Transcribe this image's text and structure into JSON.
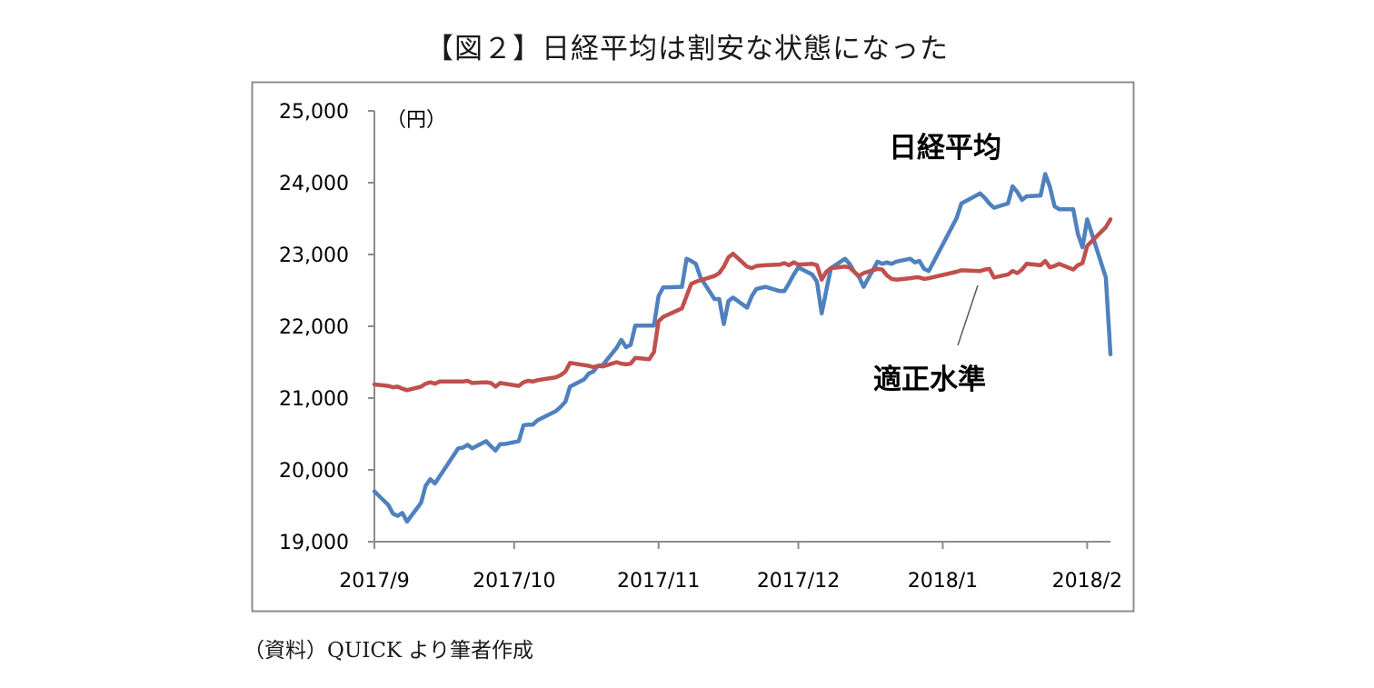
{
  "figure": {
    "title": "【図２】日経平均は割安な状態になった",
    "source": "（資料）QUICK より筆者作成"
  },
  "chart_data": {
    "type": "line",
    "title": "【図２】日経平均は割安な状態になった",
    "ylabel": "（円）",
    "xlabel": "",
    "ylim": [
      19000,
      25000
    ],
    "yticks": [
      19000,
      20000,
      21000,
      22000,
      23000,
      24000,
      25000
    ],
    "ytick_labels": [
      "19,000",
      "20,000",
      "21,000",
      "22,000",
      "23,000",
      "24,000",
      "25,000"
    ],
    "xlim": [
      "2017-09-01",
      "2018-02-06"
    ],
    "xticks": [
      "2017-09-01",
      "2017-10-01",
      "2017-11-01",
      "2017-12-01",
      "2018-01-01",
      "2018-02-01"
    ],
    "xtick_labels": [
      "2017/9",
      "2017/10",
      "2017/11",
      "2017/12",
      "2018/1",
      "2018/2"
    ],
    "grid": false,
    "legend": "none",
    "series": [
      {
        "name": "日経平均",
        "color": "#4f81bd",
        "points": [
          [
            "2017-09-01",
            19700
          ],
          [
            "2017-09-04",
            19510
          ],
          [
            "2017-09-05",
            19390
          ],
          [
            "2017-09-06",
            19360
          ],
          [
            "2017-09-07",
            19400
          ],
          [
            "2017-09-08",
            19280
          ],
          [
            "2017-09-11",
            19540
          ],
          [
            "2017-09-12",
            19780
          ],
          [
            "2017-09-13",
            19870
          ],
          [
            "2017-09-14",
            19810
          ],
          [
            "2017-09-15",
            19910
          ],
          [
            "2017-09-19",
            20300
          ],
          [
            "2017-09-20",
            20310
          ],
          [
            "2017-09-21",
            20350
          ],
          [
            "2017-09-22",
            20300
          ],
          [
            "2017-09-25",
            20400
          ],
          [
            "2017-09-26",
            20330
          ],
          [
            "2017-09-27",
            20270
          ],
          [
            "2017-09-28",
            20360
          ],
          [
            "2017-09-29",
            20360
          ],
          [
            "2017-10-02",
            20400
          ],
          [
            "2017-10-03",
            20620
          ],
          [
            "2017-10-04",
            20630
          ],
          [
            "2017-10-05",
            20630
          ],
          [
            "2017-10-06",
            20690
          ],
          [
            "2017-10-10",
            20820
          ],
          [
            "2017-10-11",
            20880
          ],
          [
            "2017-10-12",
            20950
          ],
          [
            "2017-10-13",
            21160
          ],
          [
            "2017-10-16",
            21260
          ],
          [
            "2017-10-17",
            21340
          ],
          [
            "2017-10-18",
            21370
          ],
          [
            "2017-10-19",
            21450
          ],
          [
            "2017-10-20",
            21460
          ],
          [
            "2017-10-23",
            21700
          ],
          [
            "2017-10-24",
            21810
          ],
          [
            "2017-10-25",
            21710
          ],
          [
            "2017-10-26",
            21740
          ],
          [
            "2017-10-27",
            22010
          ],
          [
            "2017-10-30",
            22010
          ],
          [
            "2017-10-31",
            22010
          ],
          [
            "2017-11-01",
            22420
          ],
          [
            "2017-11-02",
            22540
          ],
          [
            "2017-11-06",
            22550
          ],
          [
            "2017-11-07",
            22940
          ],
          [
            "2017-11-08",
            22910
          ],
          [
            "2017-11-09",
            22870
          ],
          [
            "2017-11-10",
            22680
          ],
          [
            "2017-11-13",
            22380
          ],
          [
            "2017-11-14",
            22380
          ],
          [
            "2017-11-15",
            22030
          ],
          [
            "2017-11-16",
            22350
          ],
          [
            "2017-11-17",
            22400
          ],
          [
            "2017-11-20",
            22260
          ],
          [
            "2017-11-21",
            22420
          ],
          [
            "2017-11-22",
            22520
          ],
          [
            "2017-11-24",
            22550
          ],
          [
            "2017-11-27",
            22490
          ],
          [
            "2017-11-28",
            22490
          ],
          [
            "2017-11-29",
            22600
          ],
          [
            "2017-11-30",
            22720
          ],
          [
            "2017-12-01",
            22820
          ],
          [
            "2017-12-04",
            22720
          ],
          [
            "2017-12-05",
            22620
          ],
          [
            "2017-12-06",
            22180
          ],
          [
            "2017-12-07",
            22500
          ],
          [
            "2017-12-08",
            22810
          ],
          [
            "2017-12-11",
            22940
          ],
          [
            "2017-12-12",
            22870
          ],
          [
            "2017-12-13",
            22760
          ],
          [
            "2017-12-14",
            22690
          ],
          [
            "2017-12-15",
            22550
          ],
          [
            "2017-12-18",
            22900
          ],
          [
            "2017-12-19",
            22870
          ],
          [
            "2017-12-20",
            22890
          ],
          [
            "2017-12-21",
            22870
          ],
          [
            "2017-12-22",
            22900
          ],
          [
            "2017-12-25",
            22940
          ],
          [
            "2017-12-26",
            22890
          ],
          [
            "2017-12-27",
            22910
          ],
          [
            "2017-12-28",
            22800
          ],
          [
            "2017-12-29",
            22770
          ],
          [
            "2018-01-04",
            23510
          ],
          [
            "2018-01-05",
            23710
          ],
          [
            "2018-01-09",
            23850
          ],
          [
            "2018-01-10",
            23790
          ],
          [
            "2018-01-11",
            23710
          ],
          [
            "2018-01-12",
            23650
          ],
          [
            "2018-01-15",
            23710
          ],
          [
            "2018-01-16",
            23950
          ],
          [
            "2018-01-17",
            23870
          ],
          [
            "2018-01-18",
            23760
          ],
          [
            "2018-01-19",
            23810
          ],
          [
            "2018-01-22",
            23820
          ],
          [
            "2018-01-23",
            24120
          ],
          [
            "2018-01-24",
            23940
          ],
          [
            "2018-01-25",
            23670
          ],
          [
            "2018-01-26",
            23630
          ],
          [
            "2018-01-29",
            23630
          ],
          [
            "2018-01-30",
            23290
          ],
          [
            "2018-01-31",
            23100
          ],
          [
            "2018-02-01",
            23490
          ],
          [
            "2018-02-05",
            22680
          ],
          [
            "2018-02-06",
            21610
          ]
        ]
      },
      {
        "name": "適正水準",
        "color": "#c0504d",
        "points": [
          [
            "2017-09-01",
            21190
          ],
          [
            "2017-09-04",
            21170
          ],
          [
            "2017-09-05",
            21150
          ],
          [
            "2017-09-06",
            21160
          ],
          [
            "2017-09-07",
            21130
          ],
          [
            "2017-09-08",
            21110
          ],
          [
            "2017-09-11",
            21160
          ],
          [
            "2017-09-12",
            21200
          ],
          [
            "2017-09-13",
            21220
          ],
          [
            "2017-09-14",
            21200
          ],
          [
            "2017-09-15",
            21230
          ],
          [
            "2017-09-19",
            21230
          ],
          [
            "2017-09-20",
            21230
          ],
          [
            "2017-09-21",
            21240
          ],
          [
            "2017-09-22",
            21210
          ],
          [
            "2017-09-25",
            21220
          ],
          [
            "2017-09-26",
            21210
          ],
          [
            "2017-09-27",
            21160
          ],
          [
            "2017-09-28",
            21210
          ],
          [
            "2017-09-29",
            21200
          ],
          [
            "2017-10-02",
            21170
          ],
          [
            "2017-10-03",
            21220
          ],
          [
            "2017-10-04",
            21240
          ],
          [
            "2017-10-05",
            21230
          ],
          [
            "2017-10-06",
            21250
          ],
          [
            "2017-10-10",
            21290
          ],
          [
            "2017-10-11",
            21320
          ],
          [
            "2017-10-12",
            21370
          ],
          [
            "2017-10-13",
            21490
          ],
          [
            "2017-10-16",
            21460
          ],
          [
            "2017-10-17",
            21450
          ],
          [
            "2017-10-18",
            21430
          ],
          [
            "2017-10-19",
            21450
          ],
          [
            "2017-10-20",
            21440
          ],
          [
            "2017-10-23",
            21500
          ],
          [
            "2017-10-24",
            21480
          ],
          [
            "2017-10-25",
            21470
          ],
          [
            "2017-10-26",
            21480
          ],
          [
            "2017-10-27",
            21560
          ],
          [
            "2017-10-30",
            21540
          ],
          [
            "2017-10-31",
            21640
          ],
          [
            "2017-11-01",
            22070
          ],
          [
            "2017-11-02",
            22130
          ],
          [
            "2017-11-06",
            22250
          ],
          [
            "2017-11-07",
            22420
          ],
          [
            "2017-11-08",
            22590
          ],
          [
            "2017-11-09",
            22620
          ],
          [
            "2017-11-10",
            22640
          ],
          [
            "2017-11-13",
            22700
          ],
          [
            "2017-11-14",
            22740
          ],
          [
            "2017-11-15",
            22830
          ],
          [
            "2017-11-16",
            22960
          ],
          [
            "2017-11-17",
            23010
          ],
          [
            "2017-11-20",
            22830
          ],
          [
            "2017-11-21",
            22810
          ],
          [
            "2017-11-22",
            22840
          ],
          [
            "2017-11-24",
            22850
          ],
          [
            "2017-11-27",
            22860
          ],
          [
            "2017-11-28",
            22880
          ],
          [
            "2017-11-29",
            22850
          ],
          [
            "2017-11-30",
            22890
          ],
          [
            "2017-12-01",
            22860
          ],
          [
            "2017-12-04",
            22870
          ],
          [
            "2017-12-05",
            22850
          ],
          [
            "2017-12-06",
            22650
          ],
          [
            "2017-12-07",
            22760
          ],
          [
            "2017-12-08",
            22810
          ],
          [
            "2017-12-11",
            22830
          ],
          [
            "2017-12-12",
            22820
          ],
          [
            "2017-12-13",
            22760
          ],
          [
            "2017-12-14",
            22700
          ],
          [
            "2017-12-15",
            22740
          ],
          [
            "2017-12-18",
            22800
          ],
          [
            "2017-12-19",
            22790
          ],
          [
            "2017-12-20",
            22710
          ],
          [
            "2017-12-21",
            22660
          ],
          [
            "2017-12-22",
            22650
          ],
          [
            "2017-12-25",
            22670
          ],
          [
            "2017-12-26",
            22680
          ],
          [
            "2017-12-27",
            22680
          ],
          [
            "2017-12-28",
            22660
          ],
          [
            "2017-12-29",
            22670
          ],
          [
            "2018-01-04",
            22760
          ],
          [
            "2018-01-05",
            22780
          ],
          [
            "2018-01-09",
            22770
          ],
          [
            "2018-01-10",
            22790
          ],
          [
            "2018-01-11",
            22800
          ],
          [
            "2018-01-12",
            22680
          ],
          [
            "2018-01-15",
            22720
          ],
          [
            "2018-01-16",
            22770
          ],
          [
            "2018-01-17",
            22740
          ],
          [
            "2018-01-18",
            22790
          ],
          [
            "2018-01-19",
            22870
          ],
          [
            "2018-01-22",
            22850
          ],
          [
            "2018-01-23",
            22910
          ],
          [
            "2018-01-24",
            22820
          ],
          [
            "2018-01-25",
            22840
          ],
          [
            "2018-01-26",
            22870
          ],
          [
            "2018-01-29",
            22790
          ],
          [
            "2018-01-30",
            22850
          ],
          [
            "2018-01-31",
            22880
          ],
          [
            "2018-02-01",
            23120
          ],
          [
            "2018-02-05",
            23380
          ],
          [
            "2018-02-06",
            23490
          ]
        ]
      }
    ],
    "annotations": [
      {
        "text": "日経平均",
        "series": "日経平均"
      },
      {
        "text": "適正水準",
        "series": "適正水準"
      }
    ]
  }
}
